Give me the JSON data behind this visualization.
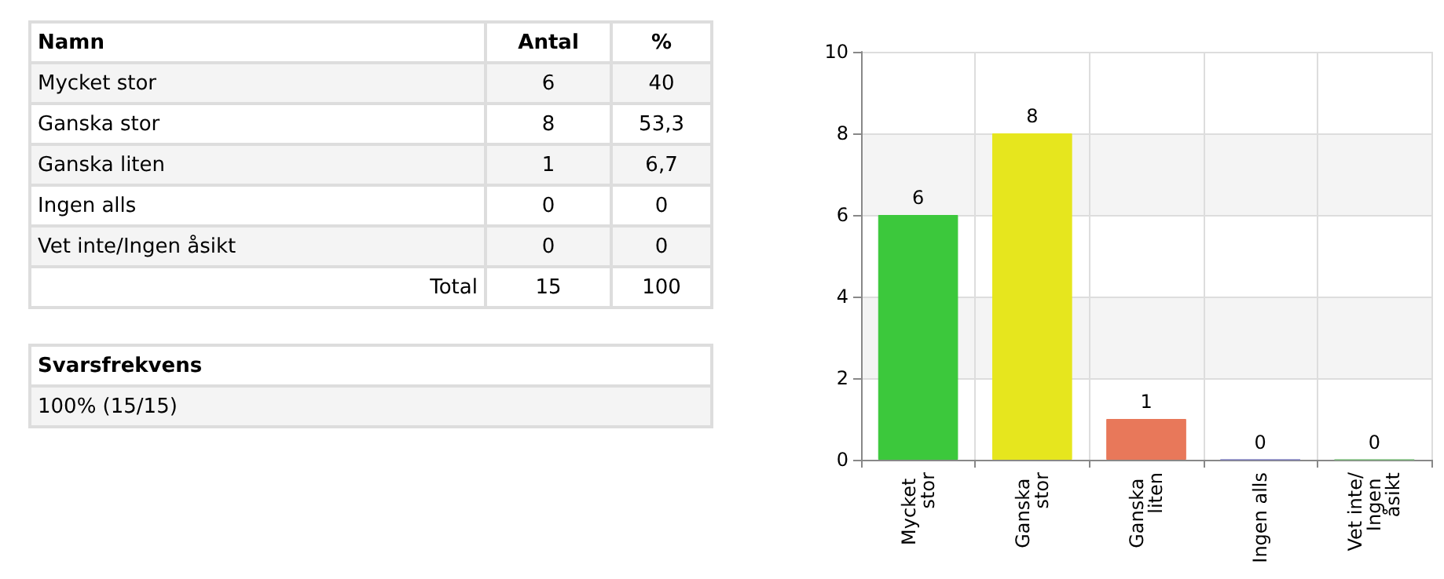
{
  "chart_data": [
    {
      "type": "other",
      "xlabel": "Namn",
      "categories": [
        "Mycket stor",
        "Ganska stor",
        "Ganska liten",
        "Ingen alls",
        "Vet inte/Ingen åsikt"
      ],
      "series": [
        {
          "name": "Antal",
          "colors": [
            "#f4f4f4",
            "#ffffff",
            "#f4f4f4",
            "#ffffff",
            "#f4f4f4"
          ],
          "values": [
            6,
            8,
            1,
            0,
            0
          ]
        },
        {
          "name": "%",
          "colors": [
            "#f4f4f4",
            "#ffffff",
            "#f4f4f4",
            "#ffffff",
            "#f4f4f4"
          ],
          "values": [
            40,
            53.3,
            6.7,
            0,
            0
          ],
          "value_labels": [
            "40",
            "53,3",
            "6,7",
            "0",
            "0"
          ]
        }
      ],
      "data_labels": true,
      "totals": [
        "15",
        "100"
      ],
      "annotations": [
        "Total",
        "Svarsfrekvens",
        "100% (15/15)"
      ]
    },
    {
      "type": "bar",
      "categories": [
        "Mycket stor",
        "Ganska stor",
        "Ganska liten",
        "Ingen alls",
        "Vet inte/Ingen åsikt"
      ],
      "values": [
        6,
        8,
        1,
        0,
        0
      ],
      "colors": [
        "#3cc83c",
        "#e6e61e",
        "#e8785a",
        "#8080c0",
        "#80c080"
      ],
      "ylim": [
        0,
        10
      ],
      "yticks": [
        0,
        2,
        4,
        6,
        8,
        10
      ],
      "grid": true,
      "data_labels": true
    }
  ]
}
